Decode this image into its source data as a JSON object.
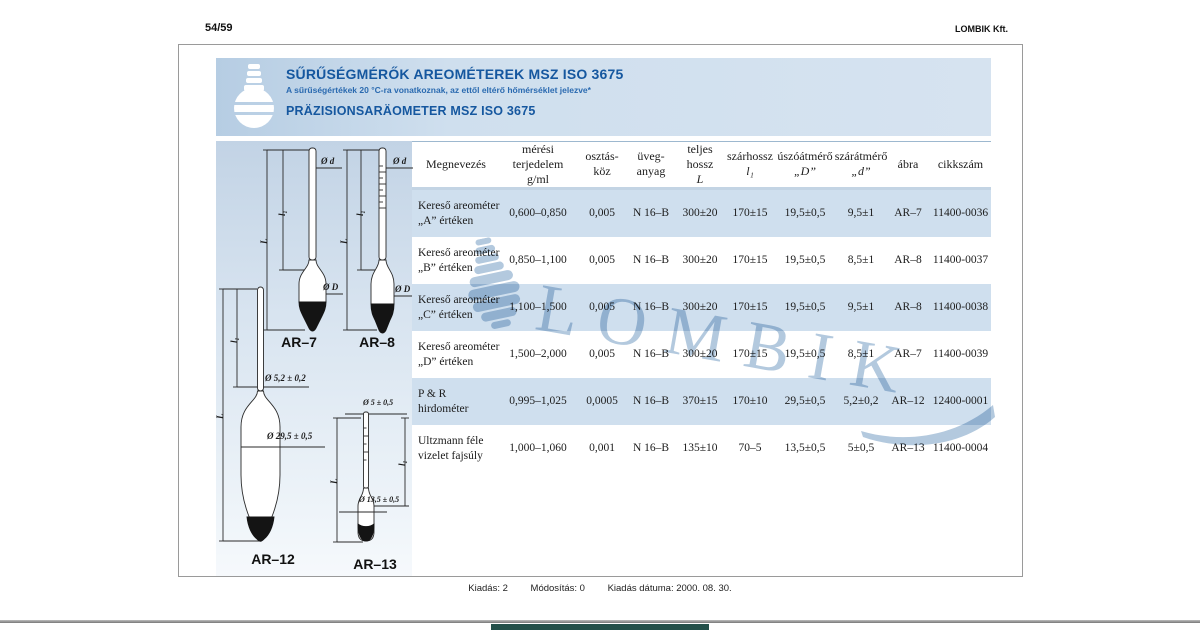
{
  "page": {
    "page_number": "54/59",
    "company": "LOMBIK Kft."
  },
  "header": {
    "title_hu": "SŰRŰSÉGMÉRŐK AREOMÉTEREK MSZ ISO 3675",
    "subtitle": "A sűrűségértékek 20 °C-ra vonatkoznak, az ettől eltérő hőmérséklet jelezve*",
    "title_de": "PRÄZISIONSARÄOMETER MSZ ISO 3675"
  },
  "watermark": {
    "text": "LOMBIK"
  },
  "figures": [
    {
      "label": "AR–7",
      "dim_stem_diameter": "Ø d",
      "dim_bulb_diameter": "Ø D",
      "dim_stem_length": "l₁",
      "dim_total_length": "L"
    },
    {
      "label": "AR–8",
      "dim_stem_diameter": "Ø d",
      "dim_bulb_diameter": "Ø D",
      "dim_stem_length": "l₁",
      "dim_total_length": "L"
    },
    {
      "label": "AR–12",
      "dim_stem_diameter": "Ø 5,2 ± 0,2",
      "dim_bulb_diameter": "Ø 29,5 ± 0,5",
      "dim_stem_length": "l₁",
      "dim_total_length": "L"
    },
    {
      "label": "AR–13",
      "dim_stem_diameter": "Ø 5 ± 0,5",
      "dim_bulb_diameter": "Ø 13,5 ± 0,5",
      "dim_stem_length": "l₁",
      "dim_total_length": "L"
    }
  ],
  "table": {
    "columns": [
      {
        "top": "Megnevezés",
        "bottom": ""
      },
      {
        "top": "mérési terjedelem",
        "bottom": "g/ml"
      },
      {
        "top": "osztás-",
        "bottom": "köz"
      },
      {
        "top": "üveg-",
        "bottom": "anyag"
      },
      {
        "top": "teljes hossz",
        "bottom": "L",
        "italic": true
      },
      {
        "top": "szárhossz",
        "bottom": "l₁",
        "italic": true
      },
      {
        "top": "úszóátmérő",
        "bottom": "„D”",
        "italic": true
      },
      {
        "top": "szárátmérő",
        "bottom": "„d”",
        "italic": true
      },
      {
        "top": "ábra",
        "bottom": ""
      },
      {
        "top": "cikkszám",
        "bottom": ""
      }
    ],
    "rows": [
      {
        "name": "Kereső areométer\n„A” értéken",
        "cells": [
          "0,600–0,850",
          "0,005",
          "N 16–B",
          "300±20",
          "170±15",
          "19,5±0,5",
          "9,5±1",
          "AR–7",
          "11400-0036"
        ]
      },
      {
        "name": "Kereső areométer\n„B” értéken",
        "cells": [
          "0,850–1,100",
          "0,005",
          "N 16–B",
          "300±20",
          "170±15",
          "19,5±0,5",
          "8,5±1",
          "AR–8",
          "11400-0037"
        ]
      },
      {
        "name": "Kereső areométer\n„C” értéken",
        "cells": [
          "1,100–1,500",
          "0,005",
          "N 16–B",
          "300±20",
          "170±15",
          "19,5±0,5",
          "9,5±1",
          "AR–8",
          "11400-0038"
        ]
      },
      {
        "name": "Kereső areométer\n„D” értéken",
        "cells": [
          "1,500–2,000",
          "0,005",
          "N 16–B",
          "300±20",
          "170±15",
          "19,5±0,5",
          "8,5±1",
          "AR–7",
          "11400-0039"
        ]
      },
      {
        "name": "P & R\nhirdométer",
        "cells": [
          "0,995–1,025",
          "0,0005",
          "N 16–B",
          "370±15",
          "170±10",
          "29,5±0,5",
          "5,2±0,2",
          "AR–12",
          "12400-0001"
        ]
      },
      {
        "name": "Ultzmann féle\nvizelet fajsúly",
        "cells": [
          "1,000–1,060",
          "0,001",
          "N 16–B",
          "135±10",
          "70–5",
          "13,5±0,5",
          "5±0,5",
          "AR–13",
          "11400-0004"
        ]
      }
    ]
  },
  "footer": {
    "items": [
      "Kiadás: 2",
      "Módosítás: 0",
      "Kiadás dátuma: 2000. 08. 30."
    ]
  },
  "colors": {
    "accent_blue": "#15579f",
    "band_blue": "#cfdfee",
    "row_blue": "#cfdfee",
    "watermark_blue": "#b3c9de",
    "bottom_bar_green": "#24504a",
    "rule_gray": "#8c8c8c"
  }
}
